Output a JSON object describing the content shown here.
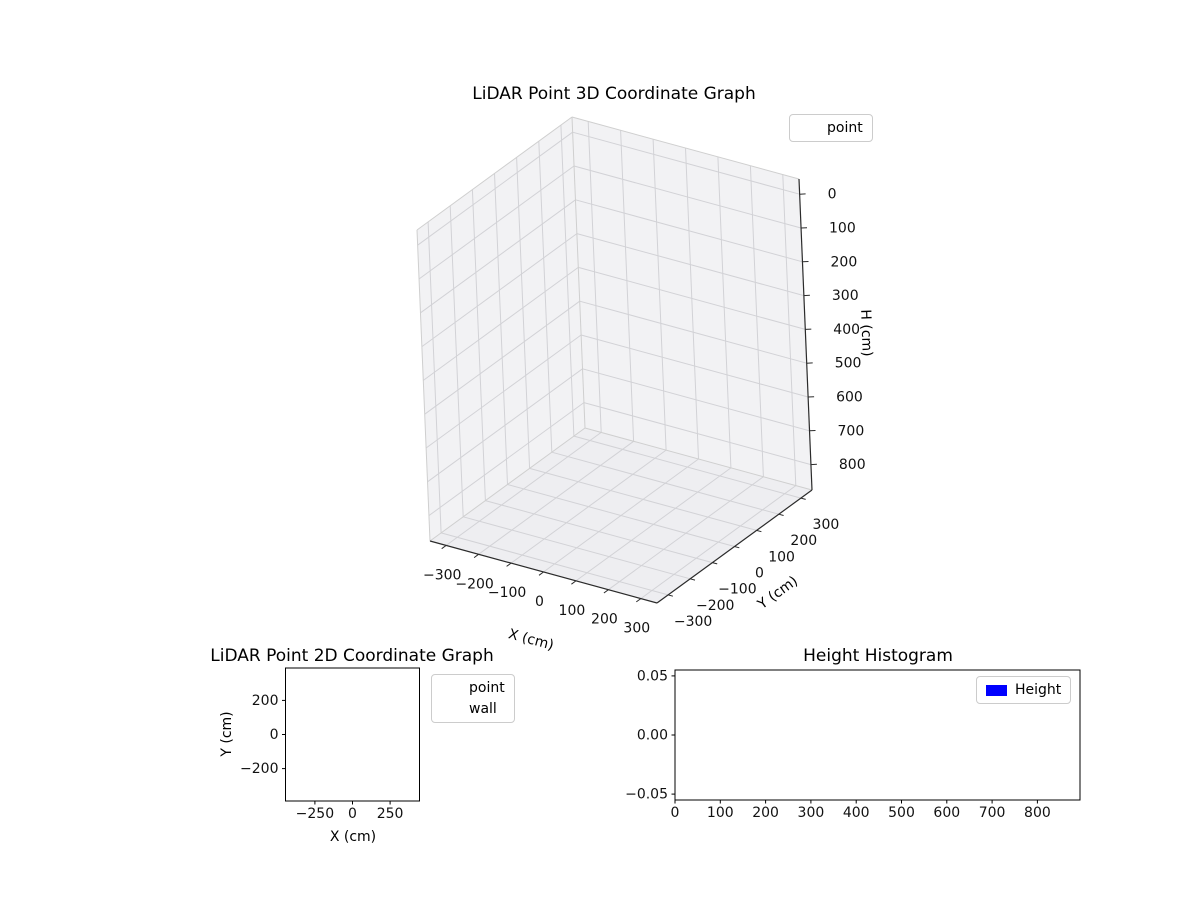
{
  "figure": {
    "background": "#ffffff"
  },
  "chart_data": [
    {
      "id": "lidar-3d",
      "type": "scatter3d",
      "title": "LiDAR Point 3D Coordinate Graph",
      "xlabel": "X (cm)",
      "ylabel": "Y (cm)",
      "zlabel": "H (cm)",
      "xlim": [
        -350,
        350
      ],
      "ylim": [
        -350,
        350
      ],
      "zlim": [
        -45,
        875
      ],
      "z_axis_inverted": true,
      "grid": true,
      "xticks": [
        -300,
        -200,
        -100,
        0,
        100,
        200,
        300
      ],
      "xtick_labels": [
        "−300",
        "−200",
        "−100",
        "0",
        "100",
        "200",
        "300"
      ],
      "yticks": [
        -300,
        -200,
        -100,
        0,
        100,
        200,
        300
      ],
      "ytick_labels": [
        "−300",
        "−200",
        "−100",
        "0",
        "100",
        "200",
        "300"
      ],
      "zticks": [
        0,
        100,
        200,
        300,
        400,
        500,
        600,
        700,
        800
      ],
      "ztick_labels": [
        "0",
        "100",
        "200",
        "300",
        "400",
        "500",
        "600",
        "700",
        "800"
      ],
      "legend": [
        {
          "label": "point"
        }
      ],
      "legend_position": "upper right",
      "points": []
    },
    {
      "id": "lidar-2d",
      "type": "scatter",
      "title": "LiDAR Point 2D Coordinate Graph",
      "xlabel": "X (cm)",
      "ylabel": "Y (cm)",
      "xlim": [
        -445,
        445
      ],
      "ylim": [
        -390,
        390
      ],
      "grid": false,
      "xticks": [
        -250,
        0,
        250
      ],
      "xtick_labels": [
        "−250",
        "0",
        "250"
      ],
      "yticks": [
        -200,
        0,
        200
      ],
      "ytick_labels": [
        "−200",
        "0",
        "200"
      ],
      "legend": [
        {
          "label": "point",
          "color": "#90ee90",
          "marker": "circle"
        },
        {
          "label": "wall",
          "color": "#0000ff",
          "marker": "circle"
        }
      ],
      "legend_position": "outside right",
      "points": []
    },
    {
      "id": "height-histogram",
      "type": "bar",
      "title": "Height Histogram",
      "xlabel": "",
      "ylabel": "",
      "xlim": [
        0,
        894
      ],
      "ylim": [
        -0.055,
        0.055
      ],
      "grid": false,
      "xticks": [
        0,
        100,
        200,
        300,
        400,
        500,
        600,
        700,
        800
      ],
      "xtick_labels": [
        "0",
        "100",
        "200",
        "300",
        "400",
        "500",
        "600",
        "700",
        "800"
      ],
      "yticks": [
        -0.05,
        0,
        0.05
      ],
      "ytick_labels": [
        "−0.05",
        "0.00",
        "0.05"
      ],
      "legend": [
        {
          "label": "Height",
          "color": "#0000ff",
          "marker": "rect"
        }
      ],
      "legend_position": "upper right inside",
      "values": []
    }
  ]
}
